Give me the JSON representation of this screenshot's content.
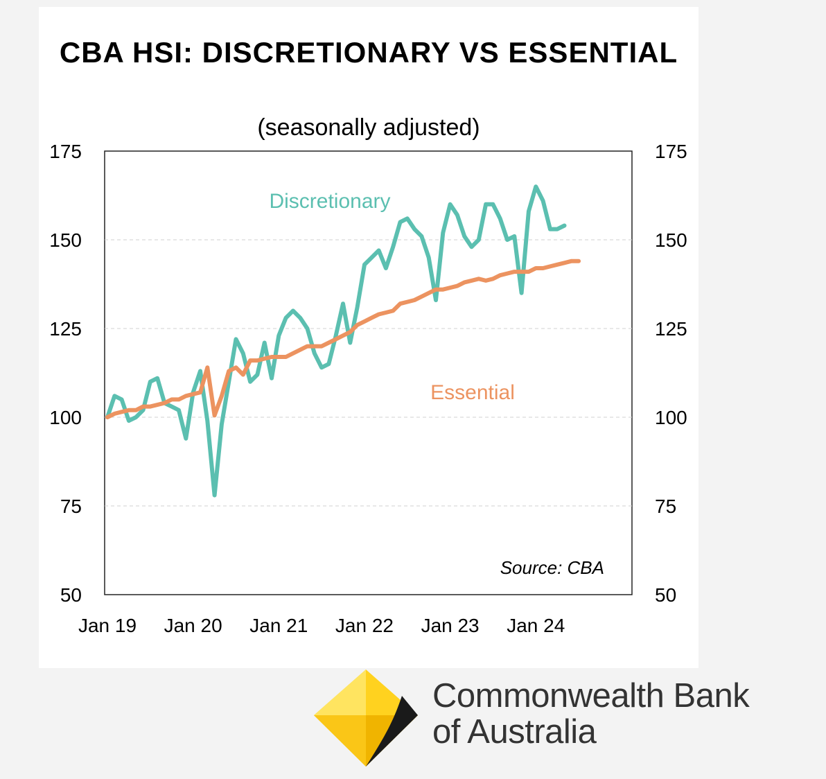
{
  "chart_data": {
    "type": "line",
    "title": "CBA  HSI: DISCRETIONARY  VS ESSENTIAL",
    "subtitle": "(seasonally adjusted)",
    "source": "Source:  CBA",
    "ylim": [
      50,
      175
    ],
    "y_ticks": [
      "175",
      "150",
      "125",
      "100",
      "75",
      "50"
    ],
    "x_ticks": [
      "Jan 19",
      "Jan 20",
      "Jan 21",
      "Jan 22",
      "Jan 23",
      "Jan 24"
    ],
    "xlim": [
      0,
      71
    ],
    "grid": "horizontal dashed",
    "series": [
      {
        "name": "Discretionary",
        "color": "#5bbfb0",
        "x": [
          0,
          1,
          2,
          3,
          4,
          5,
          6,
          7,
          8,
          9,
          10,
          11,
          12,
          13,
          14,
          15,
          16,
          17,
          18,
          19,
          20,
          21,
          22,
          23,
          24,
          25,
          26,
          27,
          28,
          29,
          30,
          31,
          32,
          33,
          34,
          35,
          36,
          37,
          38,
          39,
          40,
          41,
          42,
          43,
          44,
          45,
          46,
          47,
          48,
          49,
          50,
          51,
          52,
          53,
          54,
          55,
          56,
          57,
          58,
          59,
          60,
          61,
          62,
          63,
          64,
          65,
          66,
          67,
          68
        ],
        "values": [
          100,
          106,
          105,
          99,
          100,
          102,
          110,
          111,
          104,
          103,
          102,
          94,
          107,
          113,
          99,
          78,
          98,
          110,
          122,
          118,
          110,
          112,
          121,
          111,
          123,
          128,
          130,
          128,
          125,
          118,
          114,
          115,
          123,
          132,
          121,
          131,
          143,
          145,
          147,
          142,
          148,
          155,
          156,
          153,
          151,
          145,
          133,
          152,
          160,
          157,
          151,
          148,
          150,
          160,
          160,
          156,
          150,
          151,
          135,
          158,
          165,
          161,
          153,
          153,
          154,
          null,
          null,
          null,
          null
        ]
      },
      {
        "name": "Essential",
        "color": "#ec9360",
        "x": [
          0,
          1,
          2,
          3,
          4,
          5,
          6,
          7,
          8,
          9,
          10,
          11,
          12,
          13,
          14,
          15,
          16,
          17,
          18,
          19,
          20,
          21,
          22,
          23,
          24,
          25,
          26,
          27,
          28,
          29,
          30,
          31,
          32,
          33,
          34,
          35,
          36,
          37,
          38,
          39,
          40,
          41,
          42,
          43,
          44,
          45,
          46,
          47,
          48,
          49,
          50,
          51,
          52,
          53,
          54,
          55,
          56,
          57,
          58,
          59,
          60,
          61,
          62,
          63,
          64,
          65,
          66,
          67,
          68
        ],
        "values": [
          100,
          101,
          101.5,
          102,
          102,
          103,
          103,
          103.5,
          104,
          105,
          105,
          106,
          106.5,
          107,
          114,
          100.5,
          106,
          113,
          114,
          112,
          116,
          116,
          116.5,
          117,
          117,
          117,
          118,
          119,
          120,
          120,
          120,
          121,
          122,
          123,
          124,
          126,
          127,
          128,
          129,
          129.5,
          130,
          132,
          132.5,
          133,
          134,
          135,
          136,
          136,
          136.5,
          137,
          138,
          138.5,
          139,
          138.5,
          139,
          140,
          140.5,
          141,
          141,
          141,
          142,
          142,
          142.5,
          143,
          143.5,
          144,
          144,
          null,
          null
        ]
      }
    ]
  },
  "logo": {
    "line1": "Commonwealth Bank",
    "line2": "of Australia",
    "primary_color": "#ffcc00"
  }
}
